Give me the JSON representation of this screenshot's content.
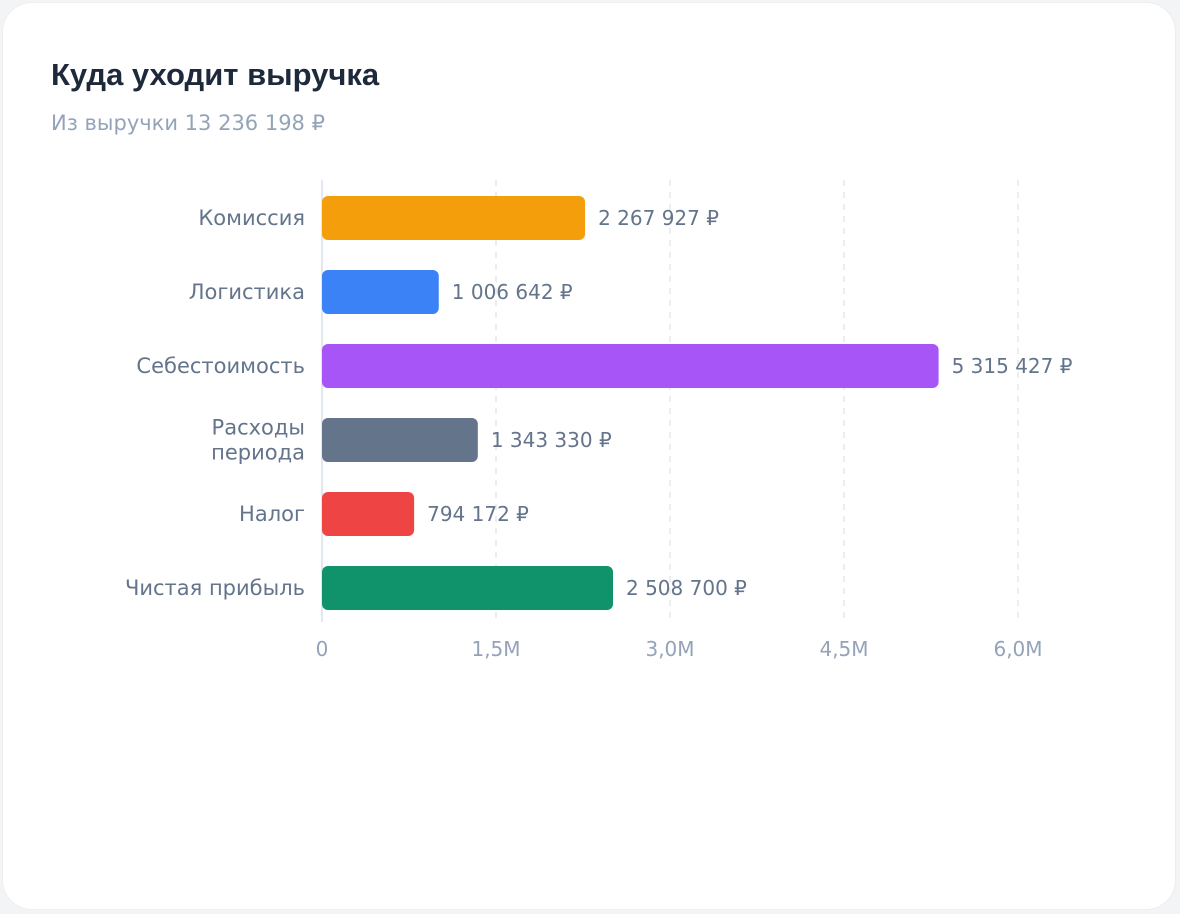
{
  "header": {
    "title": "Куда уходит выручка",
    "subtitle": "Из выручки 13 236 198 ₽"
  },
  "chart_data": {
    "type": "bar",
    "orientation": "horizontal",
    "title": "Куда уходит выручка",
    "subtitle": "Из выручки 13 236 198 ₽",
    "categories": [
      [
        "Комиссия"
      ],
      [
        "Логистика"
      ],
      [
        "Себестоимость"
      ],
      [
        "Расходы",
        "периода"
      ],
      [
        "Налог"
      ],
      [
        "Чистая прибыль"
      ]
    ],
    "values": [
      2267927,
      1006642,
      5315427,
      1343330,
      794172,
      2508700
    ],
    "value_labels": [
      "2 267 927 ₽",
      "1 006 642 ₽",
      "5 315 427 ₽",
      "1 343 330 ₽",
      "794 172 ₽",
      "2 508 700 ₽"
    ],
    "colors": [
      "#f59e0b",
      "#3b82f6",
      "#a855f7",
      "#64748b",
      "#ef4444",
      "#10936a"
    ],
    "xlim": [
      0,
      6000000
    ],
    "ticks": [
      0,
      1500000,
      3000000,
      4500000,
      6000000
    ],
    "tick_labels": [
      "0",
      "1,5M",
      "3,0M",
      "4,5M",
      "6,0M"
    ],
    "grid": "vertical dashed",
    "legend": "none"
  }
}
